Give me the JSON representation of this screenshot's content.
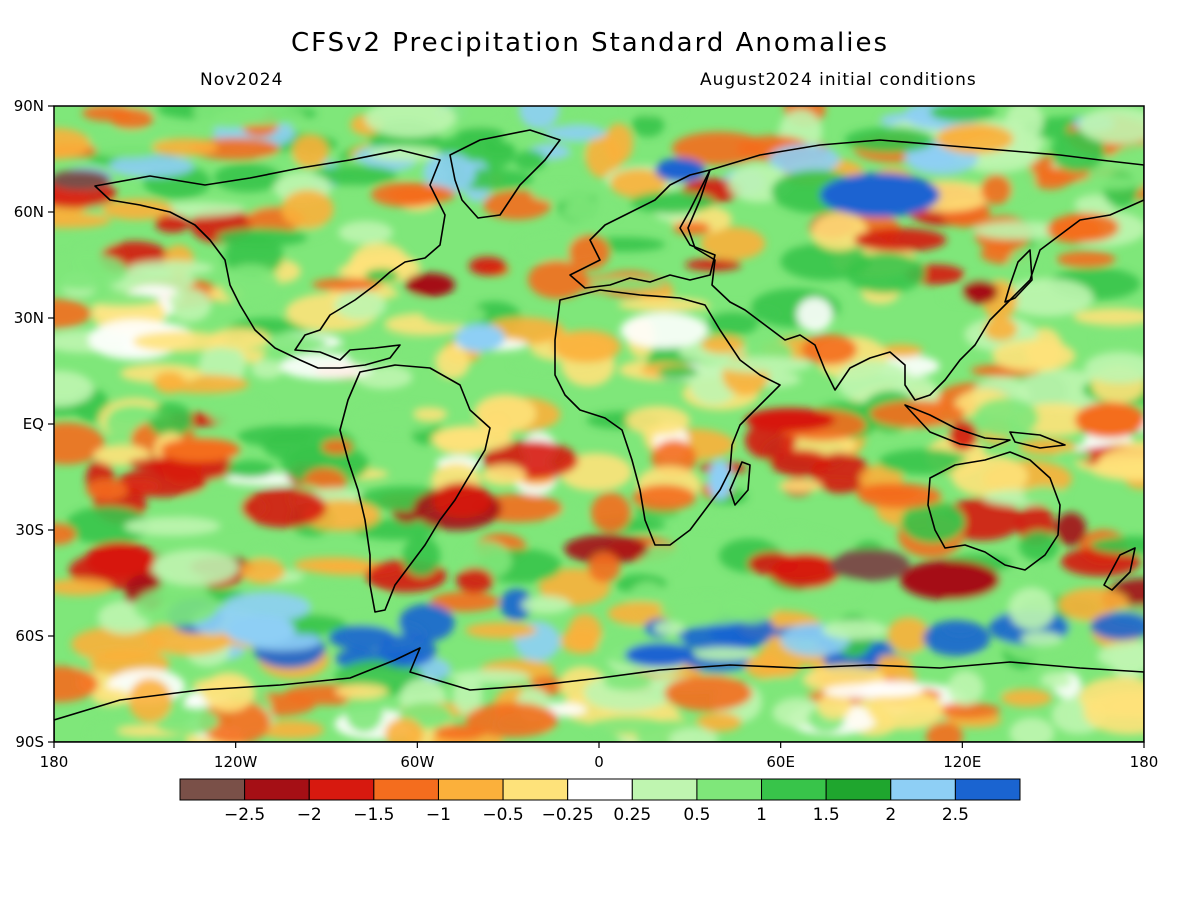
{
  "title": "CFSv2 Precipitation Standard Anomalies",
  "subtitle_left": "Nov2024",
  "subtitle_right": "August2024 initial conditions",
  "lat_labels": [
    "90N",
    "60N",
    "30N",
    "EQ",
    "30S",
    "60S",
    "90S"
  ],
  "lon_labels": [
    "180",
    "120W",
    "60W",
    "0",
    "60E",
    "120E",
    "180"
  ],
  "colorbar": {
    "colors": [
      "#7a5048",
      "#a50f15",
      "#d7190f",
      "#f46d1e",
      "#fbb03b",
      "#fee27a",
      "#ffffff",
      "#bff5b0",
      "#7fe77a",
      "#38c44a",
      "#1fa62e",
      "#8ecff5",
      "#1a64d1"
    ],
    "labels": [
      "−2.5",
      "−2",
      "−1.5",
      "−1",
      "−0.5",
      "−0.25",
      "0.25",
      "0.5",
      "1",
      "1.5",
      "2",
      "2.5"
    ]
  },
  "map": {
    "background": "#ffffff",
    "coastline_color": "#000000",
    "field": "precipitation standard anomaly"
  }
}
